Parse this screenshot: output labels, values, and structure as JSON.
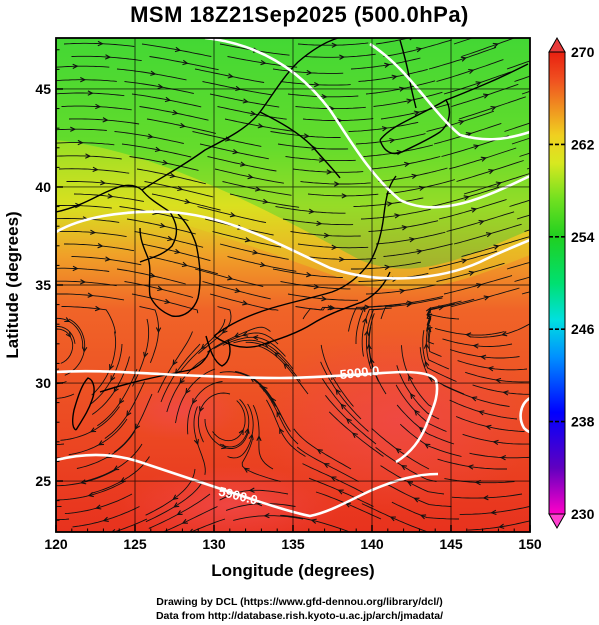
{
  "title": "MSM 18Z21Sep2025 (500.0hPa)",
  "map": {
    "lon_range": [
      120,
      150
    ],
    "lat_range": [
      22.4,
      47.6
    ],
    "x_ticks": [
      "120",
      "125",
      "130",
      "135",
      "140",
      "145",
      "150"
    ],
    "y_ticks": [
      "25",
      "30",
      "35",
      "40",
      "45"
    ],
    "xlabel": "Longitude (degrees)",
    "ylabel": "Latitude  (degrees)",
    "field": "temperature (K) shaded",
    "overlay": "streamlines of wind",
    "contours": [
      {
        "label": "5900.0",
        "level": 5900
      },
      {
        "label": "5900.0",
        "level": 5900
      }
    ],
    "colors": {
      "warm": "#e8321e",
      "hot_core": "#f04848",
      "orange": "#f07828",
      "yellow": "#e0e020",
      "green": "#48d830",
      "contour": "#ffffff"
    }
  },
  "colorbar": {
    "labels": [
      "270",
      "262",
      "254",
      "246",
      "238",
      "230"
    ],
    "stops": [
      "#ff00c8",
      "#6000c0",
      "#0000ff",
      "#0090ff",
      "#00e0e0",
      "#00e070",
      "#20d020",
      "#70e020",
      "#d8e820",
      "#f0d020",
      "#f09020",
      "#f05020",
      "#e82010"
    ]
  },
  "credits": {
    "line1": "Drawing by DCL (https://www.gfd-dennou.org/library/dcl/)",
    "line2": "Data from http://database.rish.kyoto-u.ac.jp/arch/jmadata/"
  }
}
